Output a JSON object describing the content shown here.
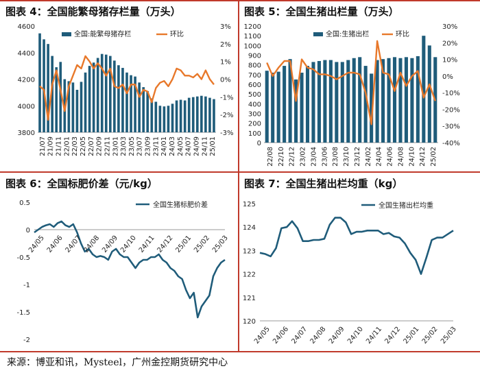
{
  "source": "来源：博亚和讯，Mysteel，广州金控期货研究中心",
  "chart_data": [
    {
      "id": "c4",
      "type": "bar+line",
      "title": "图表 4：全国能繁母猪存栏量（万头）",
      "legend": [
        "全国:能繁母猪存栏",
        "环比"
      ],
      "y_left": {
        "lim": [
          3800,
          4600
        ],
        "ticks": [
          3800,
          4000,
          4200,
          4400,
          4600
        ]
      },
      "y_right": {
        "lim": [
          -3,
          3
        ],
        "ticks": [
          "3%",
          "2%",
          "1%",
          "0%",
          "-1%",
          "-2%",
          "-3%"
        ]
      },
      "x_ticks": [
        "21/07",
        "21/09",
        "21/11",
        "22/01",
        "22/03",
        "22/05",
        "22/07",
        "22/09",
        "22/11",
        "23/01",
        "23/03",
        "23/05",
        "23/07",
        "23/09",
        "23/11",
        "24/01",
        "24/03",
        "24/05",
        "24/07",
        "24/09",
        "24/11",
        "25/01"
      ],
      "bars": [
        4545,
        4500,
        4465,
        4375,
        4290,
        4330,
        4200,
        4185,
        4175,
        4120,
        4180,
        4250,
        4300,
        4325,
        4360,
        4390,
        4385,
        4375,
        4340,
        4305,
        4285,
        4250,
        4230,
        4220,
        4175,
        4140,
        4110,
        4055,
        4030,
        4000,
        3995,
        4000,
        4015,
        4040,
        4045,
        4040,
        4060,
        4065,
        4070,
        4075,
        4070,
        4060,
        4050
      ],
      "line": [
        -0.4,
        -0.6,
        -2.3,
        -0.3,
        0.5,
        -0.6,
        -1.8,
        -0.4,
        0.2,
        0.8,
        0.6,
        1.3,
        1.0,
        0.6,
        0.9,
        0.6,
        0.2,
        0.6,
        -0.4,
        -0.5,
        -0.3,
        -0.8,
        -0.3,
        -0.3,
        -1.0,
        -0.6,
        -0.7,
        -1.3,
        -0.5,
        -0.2,
        -0.1,
        -0.4,
        0.0,
        0.6,
        0.5,
        0.2,
        0.2,
        0.1,
        0.3,
        0.0,
        0.5,
        0.0,
        -0.3
      ]
    },
    {
      "id": "c5",
      "type": "bar+line",
      "title": "图表 5：全国生猪出栏量（万头）",
      "legend": [
        "全国:生猪出栏",
        "环比"
      ],
      "y_left": {
        "lim": [
          0,
          1200
        ],
        "ticks": [
          0,
          100,
          200,
          300,
          400,
          500,
          600,
          700,
          800,
          900,
          1000,
          1100,
          1200
        ]
      },
      "y_right": {
        "lim": [
          -40,
          30
        ],
        "ticks": [
          "30%",
          "20%",
          "10%",
          "0%",
          "-10%",
          "-20%",
          "-30%",
          "-40%"
        ]
      },
      "x_ticks": [
        "22/08",
        "22/10",
        "22/12",
        "23/02",
        "23/04",
        "23/06",
        "23/08",
        "23/10",
        "23/12",
        "24/02",
        "24/04",
        "24/06",
        "24/08",
        "24/10",
        "24/12",
        "25/02"
      ],
      "bars": [
        740,
        720,
        730,
        790,
        860,
        650,
        720,
        790,
        830,
        840,
        850,
        850,
        830,
        830,
        850,
        870,
        880,
        790,
        710,
        850,
        860,
        870,
        880,
        870,
        880,
        870,
        890,
        1100,
        1000,
        880
      ],
      "line": [
        8,
        0,
        5,
        9,
        9,
        -15,
        10,
        5,
        4,
        1,
        1,
        0,
        -2,
        0,
        2,
        2,
        1,
        -10,
        -29,
        21,
        2,
        1,
        -9,
        2,
        -6,
        0,
        3,
        -13,
        -5,
        -15
      ]
    },
    {
      "id": "c6",
      "type": "line",
      "title": "图表 6：全国标肥价差（元/kg）",
      "legend": [
        "全国生猪标肥价差"
      ],
      "ylim": [
        -2,
        0.5
      ],
      "y_ticks": [
        "0.5",
        "0",
        "-0.5",
        "-1",
        "-1.5",
        "-2"
      ],
      "x_ticks": [
        "24/05",
        "24/06",
        "24/07",
        "24/08",
        "24/09",
        "24/10",
        "24/11",
        "24/12",
        "25/01",
        "25/02",
        "25/03"
      ],
      "values": [
        -0.05,
        0.0,
        0.05,
        0.08,
        0.1,
        0.05,
        0.12,
        0.15,
        0.08,
        0.05,
        0.1,
        -0.05,
        -0.25,
        -0.4,
        -0.35,
        -0.45,
        -0.5,
        -0.48,
        -0.5,
        -0.55,
        -0.4,
        -0.35,
        -0.45,
        -0.5,
        -0.5,
        -0.6,
        -0.7,
        -0.6,
        -0.55,
        -0.55,
        -0.5,
        -0.5,
        -0.45,
        -0.55,
        -0.6,
        -0.7,
        -0.75,
        -0.85,
        -0.9,
        -1.1,
        -1.25,
        -1.15,
        -1.6,
        -1.4,
        -1.3,
        -1.2,
        -0.85,
        -0.7,
        -0.6,
        -0.55
      ]
    },
    {
      "id": "c7",
      "type": "line",
      "title": "图表 7：全国生猪出栏均重（kg）",
      "legend": [
        "全国生猪出栏均重"
      ],
      "ylim": [
        120,
        125
      ],
      "y_ticks": [
        "125",
        "124",
        "123",
        "122",
        "121",
        "120"
      ],
      "x_ticks": [
        "24/05",
        "24/06",
        "24/07",
        "24/08",
        "24/09",
        "24/10",
        "24/11",
        "24/12",
        "25/01",
        "25/02",
        "25/03"
      ],
      "values": [
        122.9,
        122.85,
        122.75,
        123.1,
        123.95,
        124.0,
        124.25,
        123.95,
        123.4,
        123.4,
        123.45,
        123.45,
        123.5,
        124.1,
        124.4,
        124.4,
        124.2,
        123.7,
        123.8,
        123.8,
        123.85,
        123.85,
        123.85,
        123.7,
        123.75,
        123.6,
        123.55,
        123.3,
        122.9,
        122.6,
        122.0,
        122.7,
        123.45,
        123.55,
        123.55,
        123.7,
        123.85
      ]
    }
  ]
}
